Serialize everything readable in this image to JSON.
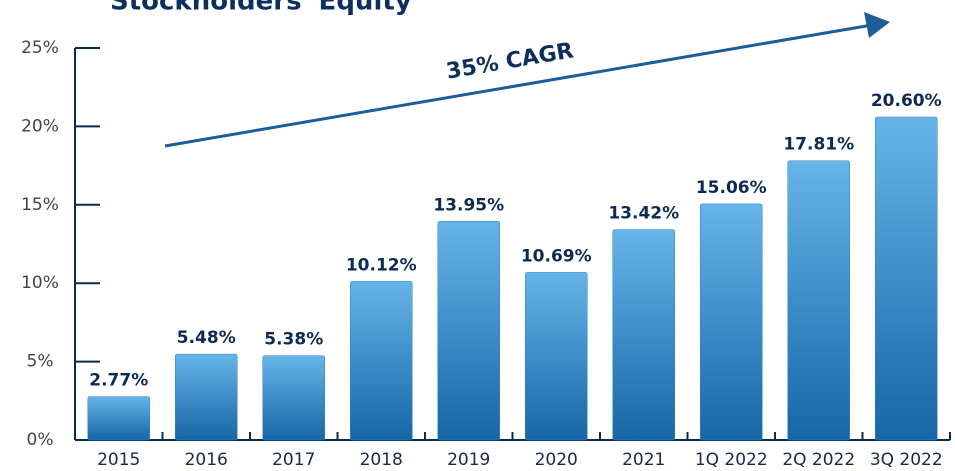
{
  "chart_data": {
    "type": "bar",
    "title": "Stockholders' Equity",
    "annotation": "35% CAGR",
    "categories": [
      "2015",
      "2016",
      "2017",
      "2018",
      "2019",
      "2020",
      "2021",
      "1Q 2022",
      "2Q 2022",
      "3Q 2022"
    ],
    "values": [
      2.77,
      5.48,
      5.38,
      10.12,
      13.95,
      10.69,
      13.42,
      15.06,
      17.81,
      20.6
    ],
    "value_labels": [
      "2.77%",
      "5.48%",
      "5.38%",
      "10.12%",
      "13.95%",
      "10.69%",
      "13.42%",
      "15.06%",
      "17.81%",
      "20.60%"
    ],
    "color": "#2f86c6",
    "ylim": [
      0,
      25
    ],
    "yticks": [
      {
        "value": 0,
        "label": "0%"
      },
      {
        "value": 5,
        "label": "5%"
      },
      {
        "value": 10,
        "label": "10%"
      },
      {
        "value": 15,
        "label": "15%"
      },
      {
        "value": 20,
        "label": "20%"
      },
      {
        "value": 25,
        "label": "25%"
      }
    ]
  }
}
